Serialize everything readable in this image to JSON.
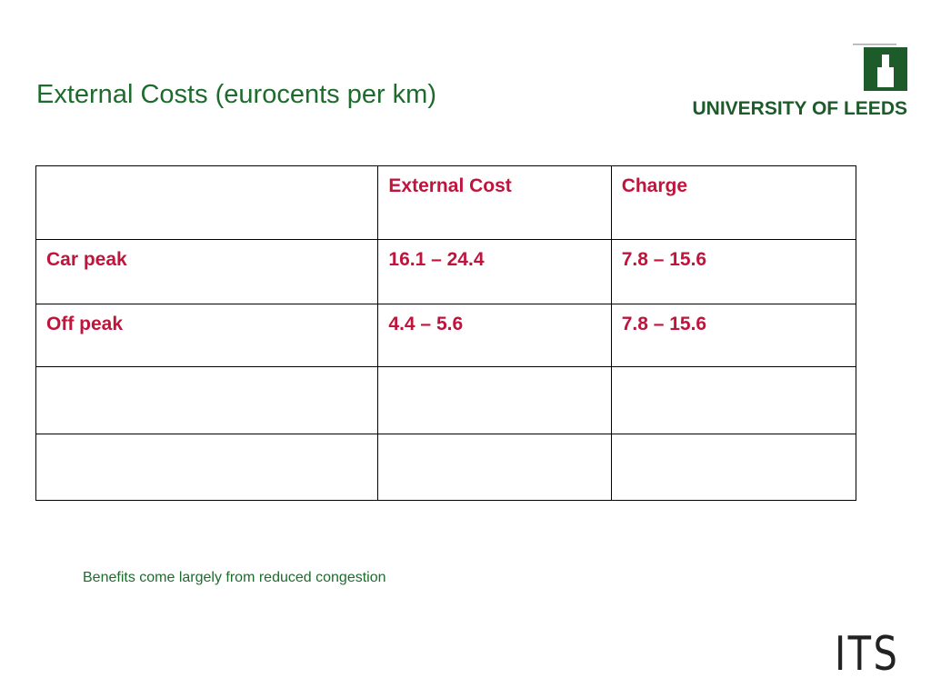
{
  "header": {
    "title": "External Costs (eurocents per km)",
    "logo": "UNIVERSITY OF LEEDS"
  },
  "table": {
    "columns": [
      "External Cost",
      "Charge"
    ],
    "rows": [
      [
        "Car peak",
        "16.1 – 24.4",
        "7.8 – 15.6"
      ],
      [
        "Off peak",
        "4.4 – 5.6",
        "7.8 – 15.6"
      ]
    ]
  },
  "note": "Benefits come largely from reduced congestion",
  "footer": {
    "logo": "ITS"
  }
}
